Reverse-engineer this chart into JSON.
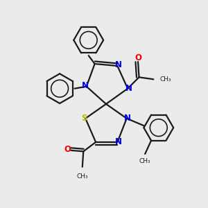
{
  "bg_color": "#ebebeb",
  "bond_color": "#1a1a1a",
  "N_color": "#0000ee",
  "S_color": "#bbbb00",
  "O_color": "#ee0000",
  "figsize": [
    3.0,
    3.0
  ],
  "dpi": 100,
  "xlim": [
    0,
    10
  ],
  "ylim": [
    0,
    10
  ],
  "spiro_x": 5.1,
  "spiro_y": 5.0,
  "lw": 1.6
}
